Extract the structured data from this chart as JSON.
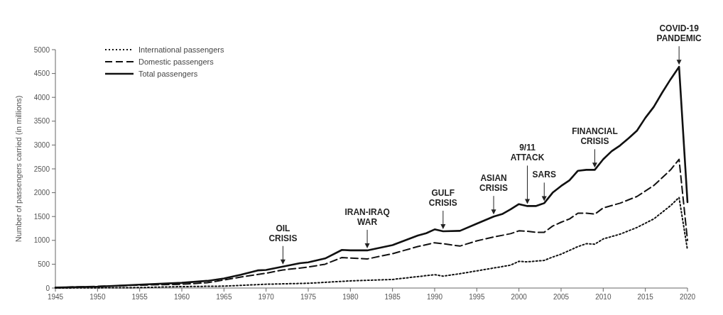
{
  "chart_data": {
    "type": "line",
    "ylabel": "Number of passengers carried (in millions)",
    "xlim": [
      1945,
      2020
    ],
    "xticks": [
      1945,
      1950,
      1955,
      1960,
      1965,
      1970,
      1975,
      1980,
      1985,
      1990,
      1995,
      2000,
      2005,
      2010,
      2015,
      2020
    ],
    "ylim": [
      0,
      5000
    ],
    "yticks": [
      0,
      500,
      1000,
      1500,
      2000,
      2500,
      3000,
      3500,
      4000,
      4500,
      5000
    ],
    "grid": false,
    "legend": "top left",
    "marker": "none",
    "series": [
      {
        "name": "International passengers",
        "color": "#111111",
        "line_style": "dotted",
        "x": [
          1945,
          1955,
          1960,
          1965,
          1970,
          1975,
          1980,
          1985,
          1990,
          1991,
          1993,
          1995,
          1997,
          1999,
          2000,
          2001,
          2003,
          2004,
          2005,
          2006,
          2007,
          2008,
          2009,
          2010,
          2012,
          2014,
          2016,
          2018,
          2019,
          2020
        ],
        "values": [
          0,
          10,
          30,
          40,
          80,
          100,
          150,
          180,
          280,
          250,
          300,
          360,
          420,
          480,
          560,
          550,
          580,
          650,
          710,
          790,
          870,
          930,
          920,
          1030,
          1130,
          1270,
          1450,
          1730,
          1900,
          800
        ]
      },
      {
        "name": "Domestic passengers",
        "color": "#111111",
        "line_style": "dashed",
        "x": [
          1945,
          1955,
          1960,
          1963,
          1965,
          1967,
          1970,
          1972,
          1975,
          1977,
          1979,
          1982,
          1985,
          1988,
          1990,
          1991,
          1993,
          1995,
          1997,
          1999,
          2000,
          2001,
          2002,
          2003,
          2004,
          2005,
          2006,
          2007,
          2008,
          2009,
          2010,
          2012,
          2014,
          2016,
          2018,
          2019,
          2020
        ],
        "values": [
          10,
          60,
          80,
          110,
          170,
          230,
          310,
          380,
          440,
          500,
          640,
          610,
          720,
          870,
          950,
          930,
          880,
          990,
          1070,
          1140,
          1200,
          1190,
          1170,
          1170,
          1300,
          1380,
          1450,
          1570,
          1570,
          1550,
          1680,
          1780,
          1920,
          2150,
          2480,
          2700,
          1000
        ]
      },
      {
        "name": "Total passengers",
        "color": "#111111",
        "line_style": "solid",
        "x": [
          1945,
          1950,
          1955,
          1960,
          1963,
          1965,
          1967,
          1969,
          1970,
          1972,
          1974,
          1975,
          1977,
          1979,
          1980,
          1982,
          1985,
          1988,
          1989,
          1990,
          1991,
          1993,
          1995,
          1997,
          1998,
          1999,
          2000,
          2001,
          2002,
          2003,
          2004,
          2005,
          2006,
          2007,
          2008,
          2009,
          2010,
          2011,
          2012,
          2013,
          2014,
          2015,
          2016,
          2017,
          2018,
          2019,
          2020
        ],
        "values": [
          10,
          30,
          70,
          110,
          150,
          200,
          280,
          370,
          380,
          450,
          520,
          540,
          620,
          800,
          790,
          790,
          900,
          1100,
          1150,
          1230,
          1190,
          1200,
          1350,
          1500,
          1550,
          1650,
          1760,
          1720,
          1720,
          1780,
          2000,
          2140,
          2260,
          2460,
          2480,
          2480,
          2700,
          2870,
          2990,
          3140,
          3300,
          3570,
          3800,
          4100,
          4380,
          4640,
          1800
        ]
      }
    ],
    "annotations": [
      {
        "text": "OIL CRISIS",
        "x": 1972,
        "y": 450
      },
      {
        "text": "IRAN-IRAQ WAR",
        "x": 1982,
        "y": 790
      },
      {
        "text": "GULF CRISIS",
        "x": 1991,
        "y": 1190
      },
      {
        "text": "ASIAN CRISIS",
        "x": 1997,
        "y": 1500
      },
      {
        "text": "9/11 ATTACK",
        "x": 2001,
        "y": 1720
      },
      {
        "text": "SARS",
        "x": 2003,
        "y": 1780
      },
      {
        "text": "FINANCIAL CRISIS",
        "x": 2009,
        "y": 2480
      },
      {
        "text": "COVID-19 PANDEMIC",
        "x": 2019,
        "y": 4640
      }
    ]
  }
}
